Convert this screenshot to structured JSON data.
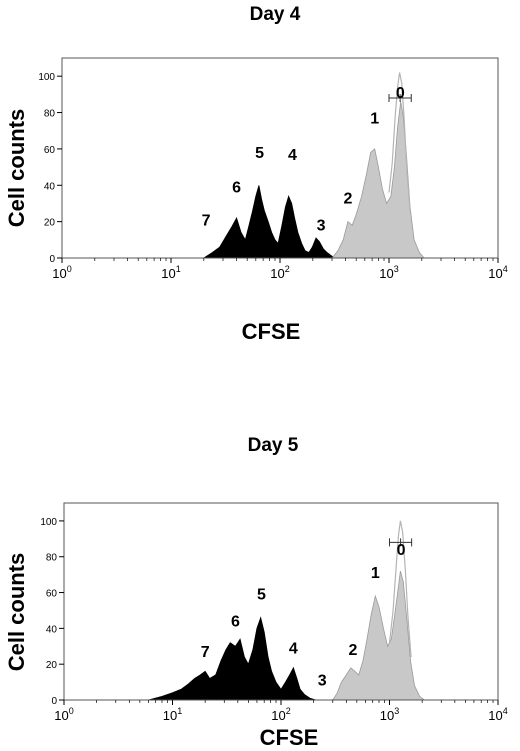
{
  "chart_data": [
    {
      "type": "area",
      "title": "Day 4",
      "xlabel": "CFSE",
      "ylabel": "Cell counts",
      "x_scale": "log",
      "xlim": [
        1,
        10000
      ],
      "ylim": [
        0,
        110
      ],
      "x_ticks": [
        1,
        10,
        100,
        1000,
        10000
      ],
      "y_ticks": [
        0,
        20,
        40,
        60,
        80,
        100
      ],
      "grid": false,
      "series": [
        {
          "color": "#000000",
          "points": [
            [
              20,
              0
            ],
            [
              24,
              3
            ],
            [
              28,
              6
            ],
            [
              32,
              12
            ],
            [
              36,
              17
            ],
            [
              40,
              22
            ],
            [
              44,
              14
            ],
            [
              48,
              10
            ],
            [
              52,
              18
            ],
            [
              56,
              26
            ],
            [
              60,
              34
            ],
            [
              64,
              40
            ],
            [
              68,
              32
            ],
            [
              72,
              26
            ],
            [
              78,
              20
            ],
            [
              84,
              14
            ],
            [
              90,
              10
            ],
            [
              96,
              8
            ],
            [
              104,
              18
            ],
            [
              112,
              28
            ],
            [
              120,
              34
            ],
            [
              128,
              30
            ],
            [
              136,
              22
            ],
            [
              146,
              14
            ],
            [
              158,
              8
            ],
            [
              170,
              4
            ],
            [
              184,
              3
            ],
            [
              198,
              6
            ],
            [
              214,
              11
            ],
            [
              230,
              9
            ],
            [
              250,
              5
            ],
            [
              270,
              3
            ],
            [
              300,
              1
            ],
            [
              330,
              0
            ]
          ]
        },
        {
          "color": "#c8c8c8",
          "points": [
            [
              300,
              0
            ],
            [
              340,
              4
            ],
            [
              380,
              10
            ],
            [
              420,
              20
            ],
            [
              460,
              18
            ],
            [
              500,
              24
            ],
            [
              560,
              34
            ],
            [
              620,
              46
            ],
            [
              680,
              58
            ],
            [
              740,
              60
            ],
            [
              800,
              50
            ],
            [
              870,
              38
            ],
            [
              950,
              30
            ],
            [
              1040,
              34
            ],
            [
              1120,
              50
            ],
            [
              1200,
              72
            ],
            [
              1280,
              86
            ],
            [
              1350,
              78
            ],
            [
              1440,
              58
            ],
            [
              1560,
              28
            ],
            [
              1700,
              10
            ],
            [
              1900,
              3
            ],
            [
              2100,
              0
            ]
          ]
        },
        {
          "color": "#b4b4b4",
          "points": [
            [
              1000,
              36
            ],
            [
              1070,
              52
            ],
            [
              1140,
              78
            ],
            [
              1200,
              94
            ],
            [
              1250,
              102
            ],
            [
              1310,
              96
            ],
            [
              1380,
              76
            ],
            [
              1460,
              48
            ],
            [
              1560,
              26
            ]
          ]
        }
      ],
      "peak_labels": [
        {
          "text": "7",
          "x": 21,
          "y": 18
        },
        {
          "text": "6",
          "x": 40,
          "y": 36
        },
        {
          "text": "5",
          "x": 65,
          "y": 55
        },
        {
          "text": "4",
          "x": 130,
          "y": 54
        },
        {
          "text": "3",
          "x": 238,
          "y": 15
        },
        {
          "text": "2",
          "x": 420,
          "y": 30
        },
        {
          "text": "1",
          "x": 740,
          "y": 74
        },
        {
          "text": "0",
          "x": 1270,
          "y": 88
        }
      ],
      "gate": {
        "x_min": 1000,
        "x_max": 1600,
        "y": 88
      }
    },
    {
      "type": "area",
      "title": "Day 5",
      "xlabel": "CFSE",
      "ylabel": "Cell counts",
      "x_scale": "log",
      "xlim": [
        1,
        10000
      ],
      "ylim": [
        0,
        110
      ],
      "x_ticks": [
        1,
        10,
        100,
        1000,
        10000
      ],
      "y_ticks": [
        0,
        20,
        40,
        60,
        80,
        100
      ],
      "grid": false,
      "series": [
        {
          "color": "#000000",
          "points": [
            [
              6,
              0
            ],
            [
              8,
              2
            ],
            [
              10,
              4
            ],
            [
              12,
              6
            ],
            [
              14,
              9
            ],
            [
              16,
              12
            ],
            [
              18,
              14
            ],
            [
              20,
              16
            ],
            [
              22,
              12
            ],
            [
              25,
              14
            ],
            [
              28,
              22
            ],
            [
              31,
              28
            ],
            [
              34,
              32
            ],
            [
              38,
              30
            ],
            [
              42,
              34
            ],
            [
              46,
              24
            ],
            [
              50,
              20
            ],
            [
              55,
              28
            ],
            [
              60,
              40
            ],
            [
              65,
              46
            ],
            [
              70,
              38
            ],
            [
              76,
              24
            ],
            [
              82,
              16
            ],
            [
              90,
              10
            ],
            [
              100,
              6
            ],
            [
              110,
              10
            ],
            [
              120,
              14
            ],
            [
              130,
              18
            ],
            [
              140,
              12
            ],
            [
              150,
              6
            ],
            [
              165,
              3
            ],
            [
              185,
              1
            ],
            [
              210,
              0
            ]
          ]
        },
        {
          "color": "#c8c8c8",
          "points": [
            [
              300,
              0
            ],
            [
              330,
              4
            ],
            [
              360,
              10
            ],
            [
              400,
              14
            ],
            [
              440,
              18
            ],
            [
              480,
              16
            ],
            [
              520,
              14
            ],
            [
              570,
              22
            ],
            [
              620,
              34
            ],
            [
              680,
              48
            ],
            [
              740,
              58
            ],
            [
              800,
              52
            ],
            [
              880,
              40
            ],
            [
              960,
              30
            ],
            [
              1040,
              34
            ],
            [
              1120,
              48
            ],
            [
              1200,
              62
            ],
            [
              1260,
              72
            ],
            [
              1340,
              66
            ],
            [
              1440,
              46
            ],
            [
              1560,
              22
            ],
            [
              1700,
              8
            ],
            [
              1900,
              2
            ],
            [
              2100,
              0
            ]
          ]
        },
        {
          "color": "#b4b4b4",
          "points": [
            [
              1000,
              32
            ],
            [
              1080,
              50
            ],
            [
              1150,
              74
            ],
            [
              1210,
              92
            ],
            [
              1260,
              100
            ],
            [
              1320,
              94
            ],
            [
              1400,
              72
            ],
            [
              1480,
              46
            ],
            [
              1580,
              24
            ]
          ]
        }
      ],
      "peak_labels": [
        {
          "text": "7",
          "x": 20,
          "y": 24
        },
        {
          "text": "6",
          "x": 38,
          "y": 41
        },
        {
          "text": "5",
          "x": 66,
          "y": 56
        },
        {
          "text": "4",
          "x": 130,
          "y": 26
        },
        {
          "text": "3",
          "x": 240,
          "y": 8
        },
        {
          "text": "2",
          "x": 460,
          "y": 25
        },
        {
          "text": "1",
          "x": 740,
          "y": 68
        },
        {
          "text": "0",
          "x": 1280,
          "y": 81
        }
      ],
      "gate": {
        "x_min": 1000,
        "x_max": 1600,
        "y": 88
      }
    }
  ]
}
